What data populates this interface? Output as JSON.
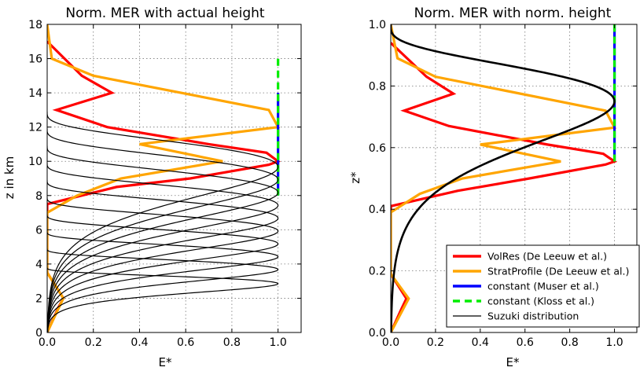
{
  "chart_data": [
    {
      "type": "line",
      "title": "Norm. MER with actual height",
      "xlabel": "E*",
      "ylabel": "z in km",
      "xlim": [
        0.0,
        1.1
      ],
      "ylim": [
        0,
        18
      ],
      "xticks": [
        0.0,
        0.2,
        0.4,
        0.6,
        0.8,
        1.0
      ],
      "xtick_labels": [
        "0.0",
        "0.2",
        "0.4",
        "0.6",
        "0.8",
        "1.0"
      ],
      "yticks": [
        0,
        2,
        4,
        6,
        8,
        10,
        12,
        14,
        16,
        18
      ],
      "ytick_labels": [
        "0",
        "2",
        "4",
        "6",
        "8",
        "10",
        "12",
        "14",
        "16",
        "18"
      ],
      "grid": true,
      "series": [
        {
          "name": "VolRes (De Leeuw et al.)",
          "color": "#ff0000",
          "width": 3.2,
          "dash": "",
          "x": [
            0,
            0.05,
            0.07,
            0.0,
            0.0,
            0.3,
            0.62,
            0.96,
            1.0,
            0.95,
            0.7,
            0.26,
            0.04,
            0.28,
            0.15,
            0.0
          ],
          "y": [
            0,
            1.5,
            2,
            3.5,
            7.5,
            8.5,
            9,
            9.8,
            10,
            10.5,
            11,
            12,
            13,
            14,
            15,
            17
          ]
        },
        {
          "name": "StratProfile (De Leeuw et al.)",
          "color": "#ffa500",
          "width": 3.2,
          "dash": "",
          "x": [
            0,
            0.07,
            0.0,
            0.0,
            0.13,
            0.32,
            0.76,
            0.4,
            1.0,
            0.96,
            0.2,
            0.02,
            0.0
          ],
          "y": [
            0,
            2,
            3.5,
            7,
            8,
            9,
            10,
            11,
            12,
            13,
            15,
            16,
            18
          ]
        },
        {
          "name": "constant (Muser et al.)",
          "color": "#0000ff",
          "width": 3.2,
          "dash": "",
          "x": [
            1,
            1
          ],
          "y": [
            8,
            14
          ]
        },
        {
          "name": "constant (Kloss et al.)",
          "color": "#00ee00",
          "width": 3.2,
          "dash": "9 6",
          "x": [
            1,
            1
          ],
          "y": [
            8,
            16
          ]
        },
        {
          "name": "Suzuki distribution",
          "color": "#000000",
          "width": 1.2,
          "suzuki": true,
          "heights": [
            3.8,
            4.9,
            5.9,
            6.9,
            7.9,
            8.9,
            9.9,
            10.9,
            11.9,
            12.9
          ]
        }
      ]
    },
    {
      "type": "line",
      "title": "Norm. MER with norm. height",
      "xlabel": "E*",
      "ylabel": "z*",
      "xlim": [
        0.0,
        1.1
      ],
      "ylim": [
        0.0,
        1.0
      ],
      "xticks": [
        0.0,
        0.2,
        0.4,
        0.6,
        0.8,
        1.0
      ],
      "xtick_labels": [
        "0.0",
        "0.2",
        "0.4",
        "0.6",
        "0.8",
        "1.0"
      ],
      "yticks": [
        0.0,
        0.2,
        0.4,
        0.6,
        0.8,
        1.0
      ],
      "ytick_labels": [
        "0.0",
        "0.2",
        "0.4",
        "0.6",
        "0.8",
        "1.0"
      ],
      "grid": true,
      "legend_position": "lower-right",
      "series": [
        {
          "name": "VolRes (De Leeuw et al.)",
          "color": "#ff0000",
          "width": 3.2,
          "dash": "",
          "x": [
            0,
            0.05,
            0.07,
            0.0,
            0.0,
            0.3,
            0.62,
            0.96,
            1.0,
            0.95,
            0.7,
            0.26,
            0.06,
            0.28,
            0.16,
            0.0
          ],
          "y": [
            0,
            0.08,
            0.11,
            0.19,
            0.41,
            0.46,
            0.5,
            0.545,
            0.555,
            0.58,
            0.61,
            0.67,
            0.72,
            0.775,
            0.83,
            0.94
          ]
        },
        {
          "name": "StratProfile (De Leeuw et al.)",
          "color": "#ffa500",
          "width": 3.2,
          "dash": "",
          "x": [
            0,
            0.08,
            0.0,
            0.0,
            0.13,
            0.32,
            0.76,
            0.4,
            1.0,
            0.96,
            0.2,
            0.03,
            0.0
          ],
          "y": [
            0,
            0.11,
            0.19,
            0.39,
            0.45,
            0.5,
            0.555,
            0.61,
            0.665,
            0.72,
            0.83,
            0.89,
            1.0
          ]
        },
        {
          "name": "constant (Muser et al.)",
          "color": "#0000ff",
          "width": 3.2,
          "dash": "",
          "x": [
            1,
            1
          ],
          "y": [
            0.555,
            1.0
          ]
        },
        {
          "name": "constant (Kloss et al.)",
          "color": "#00ee00",
          "width": 3.2,
          "dash": "9 6",
          "x": [
            1,
            1
          ],
          "y": [
            0.555,
            1.0
          ]
        },
        {
          "name": "Suzuki distribution",
          "color": "#000000",
          "width": 2.6,
          "suzuki_norm": true
        }
      ]
    }
  ],
  "legend": {
    "entries": [
      {
        "label": "VolRes (De Leeuw et al.)",
        "color": "#ff0000",
        "width": 3.5,
        "dash": ""
      },
      {
        "label": "StratProfile (De Leeuw et al.)",
        "color": "#ffa500",
        "width": 3.5,
        "dash": ""
      },
      {
        "label": "constant (Muser et al.)",
        "color": "#0000ff",
        "width": 3.5,
        "dash": ""
      },
      {
        "label": "constant (Kloss et al.)",
        "color": "#00ee00",
        "width": 3.5,
        "dash": "9 6"
      },
      {
        "label": "Suzuki distribution",
        "color": "#000000",
        "width": 1.2,
        "dash": ""
      }
    ]
  }
}
